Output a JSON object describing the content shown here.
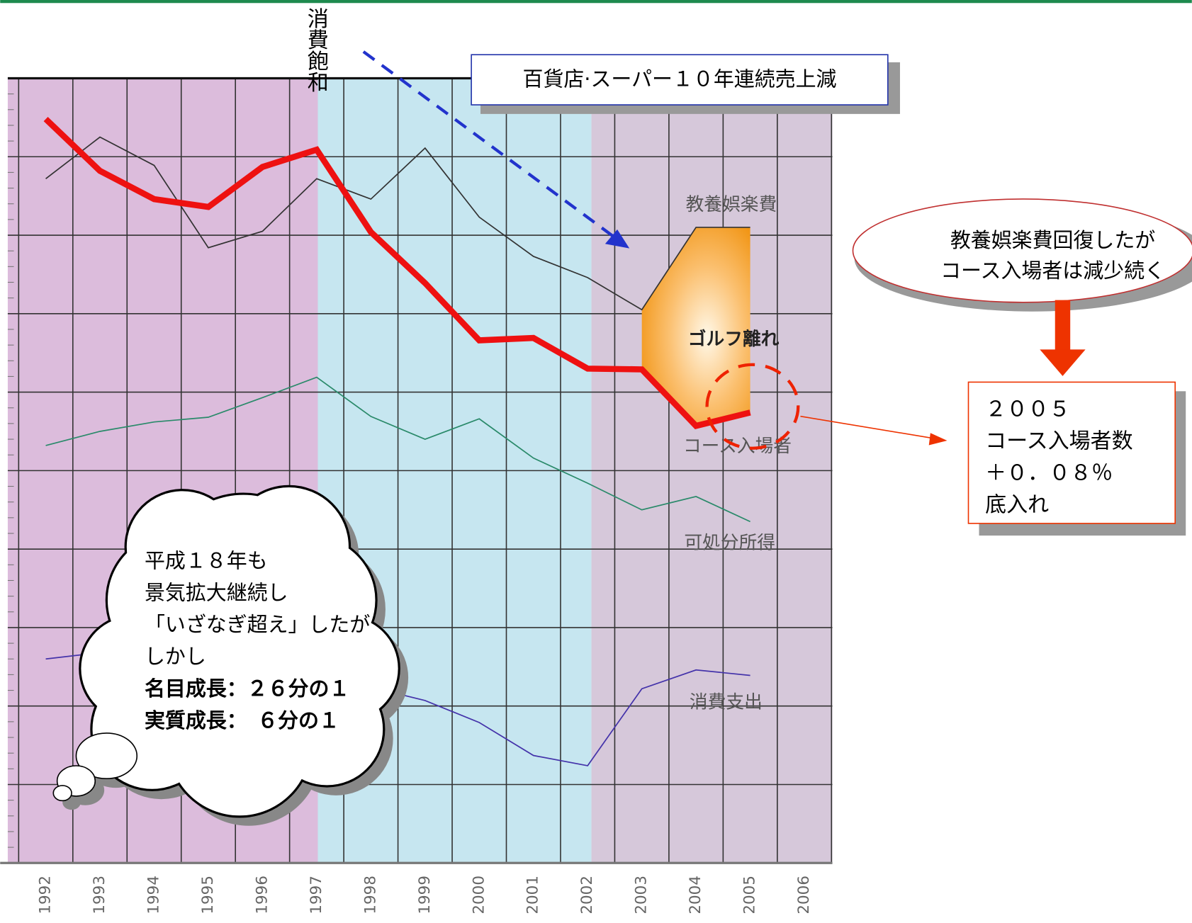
{
  "chart_data": {
    "type": "line",
    "categories": [
      "1992",
      "1993",
      "1994",
      "1995",
      "1996",
      "1997",
      "1998",
      "1999",
      "2000",
      "2001",
      "2002",
      "2003",
      "2004",
      "2005",
      "2006"
    ],
    "series": [
      {
        "name": "教養娯楽費",
        "color": "#333333",
        "values": [
          8.72,
          9.25,
          8.89,
          7.84,
          8.05,
          8.72,
          8.46,
          9.11,
          8.23,
          7.73,
          7.46,
          7.05,
          8.1,
          8.1,
          null
        ]
      },
      {
        "name": "コース入場者",
        "color": "#ee1111",
        "values": [
          9.48,
          8.82,
          8.46,
          8.36,
          8.87,
          9.09,
          8.04,
          7.39,
          6.66,
          6.69,
          6.3,
          6.29,
          5.57,
          5.74,
          null
        ]
      },
      {
        "name": "可処分所得",
        "color": "#2a8a6a",
        "values": [
          5.32,
          5.5,
          5.62,
          5.68,
          5.93,
          6.19,
          5.69,
          5.4,
          5.66,
          5.16,
          4.84,
          4.5,
          4.67,
          4.35,
          null
        ]
      },
      {
        "name": "消費支出",
        "color": "#4433aa",
        "values": [
          2.6,
          2.68,
          2.58,
          2.49,
          2.39,
          2.29,
          2.24,
          2.07,
          1.79,
          1.37,
          1.24,
          2.22,
          2.46,
          2.39,
          null
        ]
      }
    ],
    "ylim": [
      0,
      10
    ],
    "yticks": [
      0,
      1,
      2,
      3,
      4,
      5,
      6,
      7,
      8,
      9,
      10
    ],
    "grid": true,
    "annotations": {
      "saturation": "消費飽和",
      "dept_store": "百貨店·スーパー１０年連続売上減",
      "golf": "ゴルフ離れ",
      "callout": [
        "教養娯楽費回復したが",
        "コース入場者は減少続く"
      ],
      "box": [
        "２００５",
        "コース入場者数",
        "＋０．０８％",
        "底入れ"
      ],
      "cloud": [
        "平成１８年も",
        "景気拡大継続し",
        "「いざなぎ超え」したが",
        "しかし",
        "名目成長：２６分の１",
        "実質成長：　６分の１"
      ]
    }
  }
}
